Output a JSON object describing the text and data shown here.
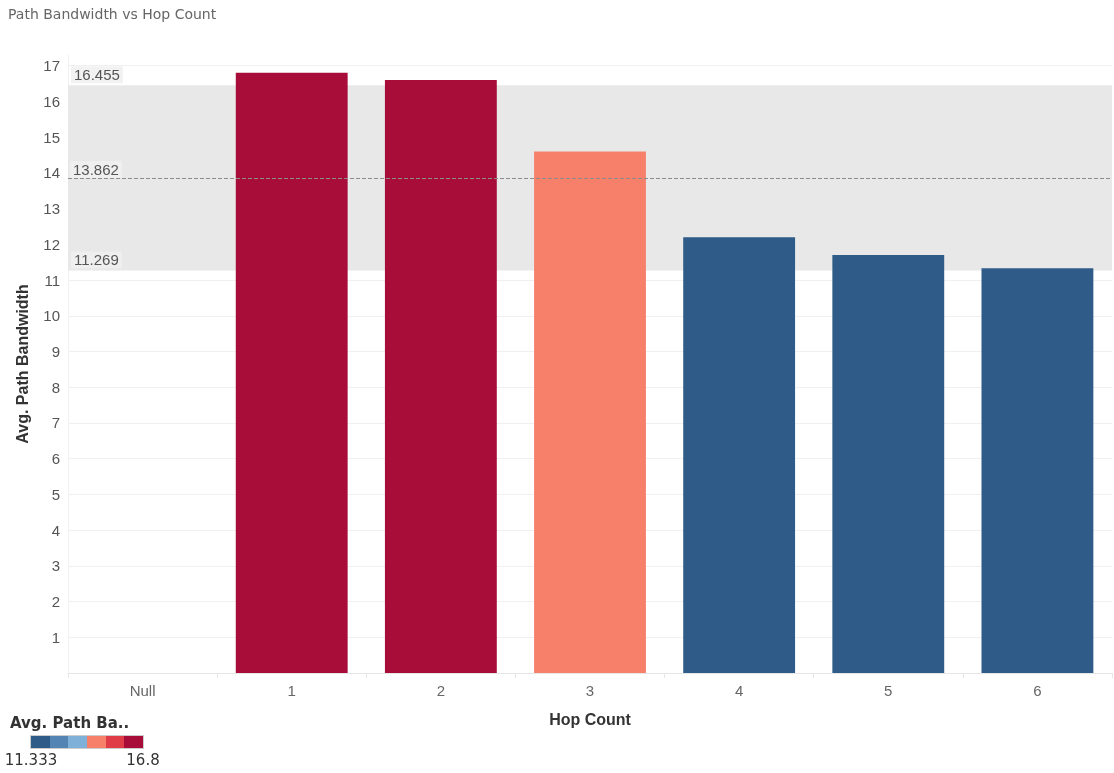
{
  "chart_data": {
    "type": "bar",
    "title": "Path Bandwidth vs Hop Count",
    "xlabel": "Hop Count",
    "ylabel": "Avg. Path Bandwidth",
    "clabel": "Avg. Path Ba..",
    "categories": [
      "Null",
      "1",
      "2",
      "3",
      "4",
      "5",
      "6"
    ],
    "values": [
      null,
      16.8,
      16.6,
      14.6,
      12.2,
      11.7,
      11.333
    ],
    "colors": [
      null,
      "#a80c39",
      "#a80c39",
      "#f6806a",
      "#2e5b88",
      "#2e5b88",
      "#2e5b88"
    ],
    "clim": [
      11.333,
      16.8
    ],
    "cticks": [
      11.333,
      16.8
    ],
    "ylim": [
      0,
      17.3
    ],
    "yticks": [
      1,
      2,
      3,
      4,
      5,
      6,
      7,
      8,
      9,
      10,
      11,
      12,
      13,
      14,
      15,
      16,
      17
    ],
    "bands": [
      {
        "axis": "y",
        "from": 11.269,
        "to": 16.455,
        "label": null,
        "color": "#e8e8e8"
      }
    ],
    "ref_lines": [
      {
        "axis": "y",
        "value": 13.862,
        "label": "13.862",
        "color": "#8c8c8c",
        "line_style": "dashed"
      }
    ],
    "annotations": [
      {
        "text": "16.455",
        "y": 16.455
      },
      {
        "text": "11.269",
        "y": 11.269
      }
    ],
    "grid": "y"
  }
}
